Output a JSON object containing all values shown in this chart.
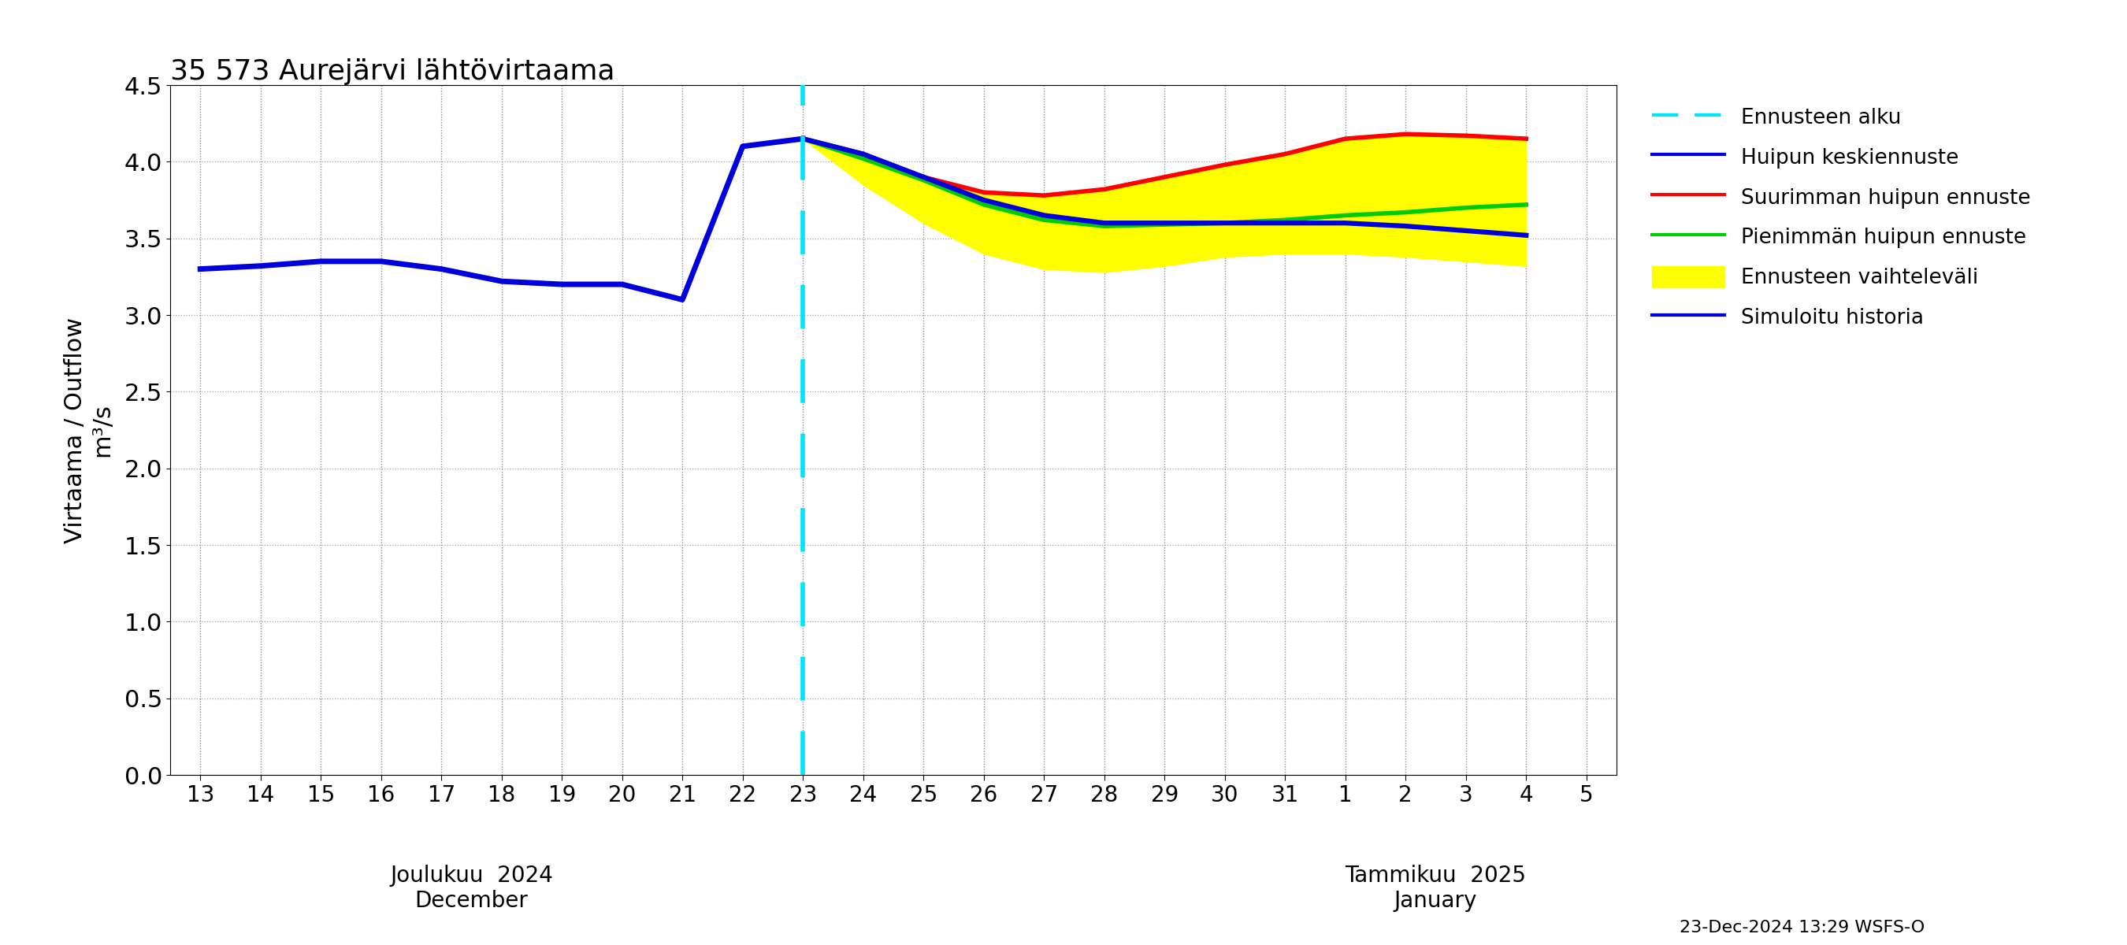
{
  "title": "35 573 Aurejärvi lähtövirtaama",
  "ylabel1": "Virtaama / Outflow",
  "ylabel2": "m³/s",
  "ylim": [
    0.0,
    4.5
  ],
  "yticks": [
    0.0,
    0.5,
    1.0,
    1.5,
    2.0,
    2.5,
    3.0,
    3.5,
    4.0,
    4.5
  ],
  "xlabel_left": "Joulukuu  2024\nDecember",
  "xlabel_right": "Tammikuu  2025\nJanuary",
  "footnote": "23-Dec-2024 13:29 WSFS-O",
  "legend_labels": [
    "Ennusteen alku",
    "Huipun keskiennuste",
    "Suurimman huipun ennuste",
    "Pienimmän huipun ennuste",
    "Ennusteen vaihteleväli",
    "Simuloitu historia"
  ],
  "hist_x": [
    0,
    1,
    2,
    3,
    4,
    5,
    6,
    7,
    8,
    9,
    10
  ],
  "hist_y": [
    3.3,
    3.32,
    3.35,
    3.35,
    3.3,
    3.22,
    3.2,
    3.2,
    3.1,
    4.1,
    4.15
  ],
  "fcast_x": [
    10,
    11,
    12,
    13,
    14,
    15,
    16,
    17,
    18,
    19,
    20,
    21,
    22
  ],
  "mean_y": [
    4.15,
    4.05,
    3.9,
    3.75,
    3.65,
    3.6,
    3.6,
    3.6,
    3.6,
    3.6,
    3.58,
    3.55,
    3.52
  ],
  "max_y": [
    4.15,
    4.05,
    3.9,
    3.8,
    3.78,
    3.82,
    3.9,
    3.98,
    4.05,
    4.15,
    4.18,
    4.17,
    4.15
  ],
  "min_y": [
    4.15,
    4.02,
    3.88,
    3.72,
    3.62,
    3.58,
    3.59,
    3.6,
    3.62,
    3.65,
    3.67,
    3.7,
    3.72
  ],
  "upper_y": [
    4.15,
    4.05,
    3.9,
    3.8,
    3.78,
    3.82,
    3.9,
    3.98,
    4.05,
    4.15,
    4.18,
    4.17,
    4.15
  ],
  "lower_y": [
    4.15,
    3.85,
    3.6,
    3.4,
    3.3,
    3.28,
    3.32,
    3.38,
    3.4,
    3.4,
    3.38,
    3.35,
    3.32
  ],
  "colors": {
    "hist": "#0000dd",
    "mean": "#0000dd",
    "max": "#ff0000",
    "min": "#00cc00",
    "fill": "#ffff00",
    "vline": "#00e5ff"
  },
  "background": "#ffffff",
  "grid_color": "#999999"
}
